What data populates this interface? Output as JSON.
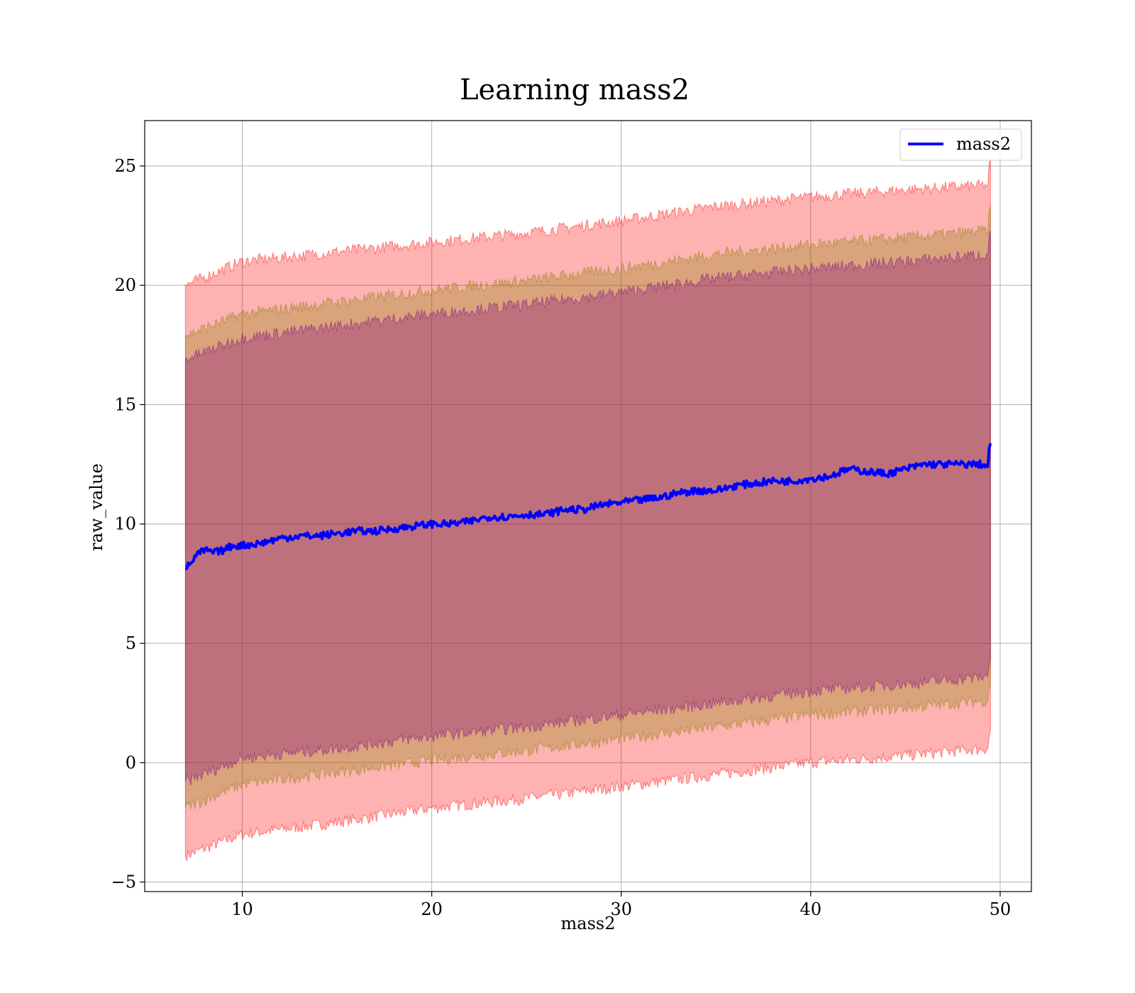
{
  "chart_data": {
    "type": "line",
    "title": "Learning mass2",
    "xlabel": "mass2",
    "ylabel": "raw_value",
    "xlim": [
      4.85,
      51.65
    ],
    "ylim": [
      -5.4,
      26.9
    ],
    "xticks": [
      10,
      20,
      30,
      40,
      50
    ],
    "yticks": [
      -5,
      0,
      5,
      10,
      15,
      20,
      25
    ],
    "grid": true,
    "legend": {
      "position": "upper right",
      "entries": [
        "mass2"
      ]
    },
    "series": [
      {
        "name": "mass2",
        "color": "#0000ff",
        "x": [
          7.0,
          7.3,
          7.6,
          8.0,
          8.5,
          9.0,
          9.5,
          10.0,
          11.0,
          12.0,
          13.0,
          14.0,
          15.0,
          16.0,
          17.0,
          18.0,
          19.0,
          20.0,
          21.0,
          22.0,
          23.0,
          24.0,
          25.0,
          26.0,
          27.0,
          28.0,
          29.0,
          30.0,
          31.0,
          32.0,
          33.0,
          34.0,
          35.0,
          36.0,
          37.0,
          38.0,
          39.0,
          40.0,
          41.0,
          42.0,
          43.0,
          44.0,
          45.0,
          46.0,
          47.0,
          48.0,
          49.0,
          49.35,
          49.45,
          49.55
        ],
        "y": [
          8.1,
          8.4,
          8.7,
          8.9,
          8.8,
          8.9,
          9.1,
          9.1,
          9.2,
          9.4,
          9.5,
          9.5,
          9.6,
          9.7,
          9.7,
          9.8,
          9.9,
          10.0,
          10.0,
          10.1,
          10.3,
          10.3,
          10.4,
          10.4,
          10.6,
          10.6,
          10.8,
          10.9,
          11.0,
          11.1,
          11.3,
          11.4,
          11.4,
          11.6,
          11.7,
          11.8,
          11.8,
          11.9,
          12.0,
          12.3,
          12.2,
          12.1,
          12.3,
          12.5,
          12.5,
          12.5,
          12.5,
          12.4,
          13.5,
          13.2
        ]
      }
    ],
    "bands": [
      {
        "color": "#ff0000",
        "opacity": 0.3,
        "x": [
          7.0,
          10.0,
          15.0,
          20.0,
          25.0,
          30.0,
          35.0,
          40.0,
          45.0,
          49.35,
          49.45,
          49.55
        ],
        "lower": [
          -3.9,
          -3.0,
          -2.5,
          -1.9,
          -1.5,
          -1.0,
          -0.5,
          0.0,
          0.3,
          0.6,
          1.3,
          1.4
        ],
        "upper": [
          20.0,
          21.0,
          21.4,
          21.8,
          22.2,
          22.7,
          23.3,
          23.7,
          24.0,
          24.2,
          25.5,
          25.0
        ]
      },
      {
        "color": "#808000",
        "opacity": 0.3,
        "x": [
          7.0,
          10.0,
          15.0,
          20.0,
          25.0,
          30.0,
          35.0,
          40.0,
          45.0,
          49.35,
          49.45,
          49.55
        ],
        "lower": [
          -1.9,
          -0.9,
          -0.4,
          0.1,
          0.5,
          1.0,
          1.5,
          2.0,
          2.3,
          2.6,
          3.3,
          3.4
        ],
        "upper": [
          17.9,
          18.8,
          19.3,
          19.8,
          20.2,
          20.7,
          21.3,
          21.7,
          22.0,
          22.3,
          23.5,
          23.0
        ]
      },
      {
        "color": "#800080",
        "opacity": 0.3,
        "x": [
          7.0,
          10.0,
          15.0,
          20.0,
          25.0,
          30.0,
          35.0,
          40.0,
          45.0,
          49.35,
          49.45,
          49.55
        ],
        "lower": [
          -0.8,
          0.2,
          0.6,
          1.1,
          1.5,
          2.0,
          2.5,
          3.0,
          3.3,
          3.6,
          4.3,
          4.4
        ],
        "upper": [
          16.9,
          17.8,
          18.3,
          18.8,
          19.2,
          19.7,
          20.3,
          20.7,
          21.0,
          21.3,
          22.5,
          22.0
        ]
      }
    ]
  }
}
